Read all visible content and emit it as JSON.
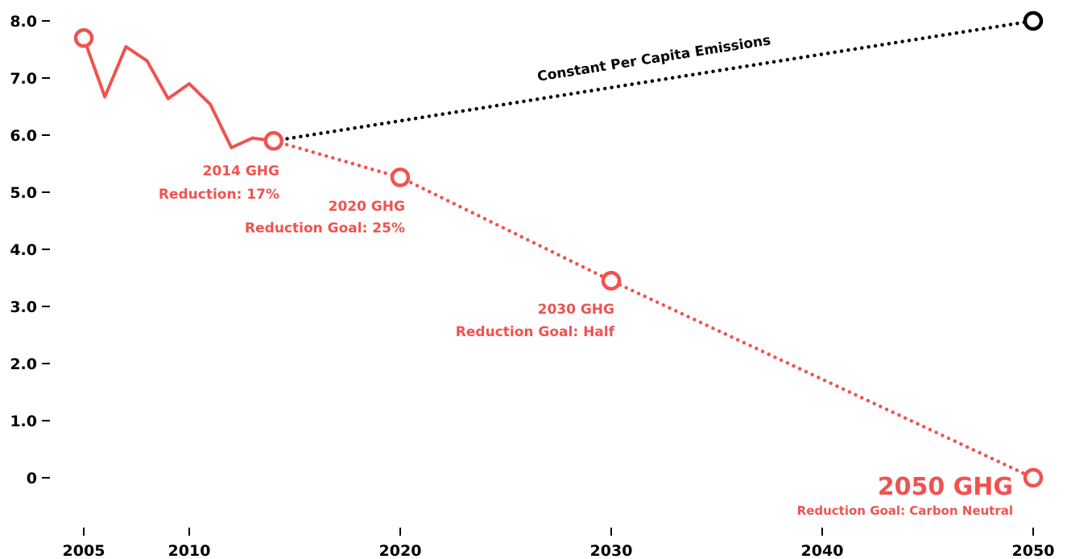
{
  "chart_data": {
    "type": "line",
    "title": "",
    "xlabel": "",
    "ylabel": "",
    "xlim": [
      2005,
      2050
    ],
    "ylim": [
      0,
      8
    ],
    "grid": false,
    "x_ticks": [
      "2005",
      "2010",
      "2020",
      "2030",
      "2040",
      "2050"
    ],
    "y_ticks": [
      "0",
      "1.0",
      "2.0",
      "3.0",
      "4.0",
      "5.0",
      "6.0",
      "7.0",
      "8.0"
    ],
    "colors": {
      "actual": "#ef5350",
      "goal": "#ef5350",
      "constant": "#000000"
    },
    "series": [
      {
        "id": "actual",
        "style": "solid",
        "x": [
          2005,
          2006,
          2007,
          2008,
          2009,
          2010,
          2011,
          2012,
          2013,
          2014
        ],
        "y": [
          7.7,
          6.67,
          7.55,
          7.3,
          6.64,
          6.9,
          6.54,
          5.78,
          5.95,
          5.9
        ]
      },
      {
        "id": "goal",
        "style": "dotted",
        "x": [
          2014,
          2020,
          2030,
          2050
        ],
        "y": [
          5.9,
          5.26,
          3.45,
          0.0
        ]
      },
      {
        "id": "constant",
        "name": "Constant Per Capita Emissions",
        "style": "dotted",
        "x": [
          2014,
          2050
        ],
        "y": [
          5.9,
          8.0
        ]
      }
    ],
    "markers": [
      {
        "x": 2005,
        "y": 7.7,
        "series": "actual"
      },
      {
        "x": 2014,
        "y": 5.9,
        "series": "actual"
      },
      {
        "x": 2020,
        "y": 5.26,
        "series": "goal"
      },
      {
        "x": 2030,
        "y": 3.45,
        "series": "goal"
      },
      {
        "x": 2050,
        "y": 0.0,
        "series": "goal"
      },
      {
        "x": 2050,
        "y": 8.0,
        "series": "constant"
      }
    ],
    "annotations": [
      {
        "id": "ann-2014",
        "lines": [
          "2014 GHG",
          "Reduction: 17%"
        ]
      },
      {
        "id": "ann-2020",
        "lines": [
          "2020 GHG",
          "Reduction Goal: 25%"
        ]
      },
      {
        "id": "ann-2030",
        "lines": [
          "2030 GHG",
          "Reduction Goal: Half"
        ]
      },
      {
        "id": "ann-2050",
        "lines": [
          "2050 GHG",
          "Reduction Goal: Carbon Neutral"
        ]
      }
    ]
  }
}
